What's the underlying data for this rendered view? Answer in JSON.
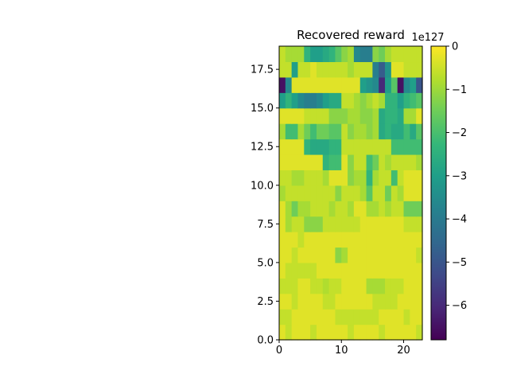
{
  "chart_data": {
    "type": "heatmap",
    "title": "Recovered reward",
    "xlabel": "",
    "ylabel": "",
    "xlim": [
      0,
      23
    ],
    "ylim": [
      0,
      19
    ],
    "x_ticks": [
      "0",
      "10",
      "20"
    ],
    "y_ticks": [
      "0.0",
      "2.5",
      "5.0",
      "7.5",
      "10.0",
      "12.5",
      "15.0",
      "17.5"
    ],
    "colormap": "viridis",
    "colorbar": {
      "range": [
        -6.8,
        0
      ],
      "ticks": [
        "0",
        "−1",
        "−2",
        "−3",
        "−4",
        "−5",
        "−6"
      ],
      "offset_label": "1e127"
    },
    "values": [
      [
        -0.3,
        -0.6,
        -0.3,
        -0.3,
        -0.3,
        -0.6,
        -0.3,
        -0.3,
        -0.3,
        -0.3,
        -0.3,
        -0.6,
        -0.3,
        -0.3,
        -0.3,
        -0.3,
        -0.6,
        -0.3,
        -0.3,
        -0.3,
        -0.3,
        -0.3,
        -0.6
      ],
      [
        -0.6,
        -0.6,
        -0.3,
        -0.3,
        -0.3,
        -0.3,
        -0.3,
        -0.3,
        -0.3,
        -0.6,
        -0.6,
        -0.6,
        -0.6,
        -0.6,
        -0.6,
        -0.6,
        -0.3,
        -0.3,
        -0.3,
        -0.3,
        -0.6,
        -0.3,
        -0.3
      ],
      [
        -0.3,
        -0.3,
        -0.6,
        -0.3,
        -0.3,
        -0.3,
        -0.3,
        -0.6,
        -0.6,
        -0.3,
        -0.3,
        -0.3,
        -0.3,
        -0.3,
        -0.3,
        -0.6,
        -0.6,
        -0.6,
        -0.6,
        -0.3,
        -0.3,
        -0.3,
        -0.3
      ],
      [
        -0.6,
        -0.6,
        -0.6,
        -0.3,
        -0.3,
        -0.6,
        -0.6,
        -0.8,
        -0.6,
        -0.6,
        -0.3,
        -0.3,
        -0.3,
        -0.3,
        -0.9,
        -0.9,
        -0.9,
        -0.6,
        -0.6,
        -0.6,
        -0.3,
        -0.3,
        -0.3
      ],
      [
        -0.3,
        -0.6,
        -0.6,
        -0.6,
        -0.6,
        -0.6,
        -0.3,
        -0.3,
        -0.3,
        -0.3,
        -0.3,
        -0.3,
        -0.3,
        -0.3,
        -0.3,
        -0.3,
        -0.3,
        -0.3,
        -0.3,
        -0.3,
        -0.3,
        -0.3,
        -0.3
      ],
      [
        -0.3,
        -0.3,
        -0.6,
        -0.3,
        -0.3,
        -0.3,
        -0.3,
        -0.3,
        -0.3,
        -1.2,
        -0.9,
        -0.3,
        -0.3,
        -0.3,
        -0.3,
        -0.3,
        -0.3,
        -0.3,
        -0.3,
        -0.3,
        -0.3,
        -0.3,
        -0.6
      ],
      [
        -0.3,
        -0.3,
        -0.3,
        -0.6,
        -0.3,
        -0.3,
        -0.3,
        -0.3,
        -0.3,
        -0.3,
        -0.3,
        -0.3,
        -0.3,
        -0.3,
        -0.3,
        -0.3,
        -0.3,
        -0.3,
        -0.3,
        -0.3,
        -0.3,
        -0.3,
        -0.3
      ],
      [
        -0.3,
        -0.9,
        -0.6,
        -0.6,
        -1.2,
        -1.2,
        -1.2,
        -0.6,
        -0.6,
        -0.6,
        -0.6,
        -0.6,
        -0.6,
        -0.3,
        -0.3,
        -0.3,
        -0.3,
        -0.3,
        -0.3,
        -0.3,
        -0.6,
        -0.6,
        -0.6
      ],
      [
        -0.3,
        -0.9,
        -1.5,
        -0.9,
        -0.9,
        -0.6,
        -0.6,
        -0.6,
        -0.9,
        -0.6,
        -0.6,
        -0.9,
        -0.3,
        -0.3,
        -0.9,
        -0.9,
        -0.6,
        -0.9,
        -0.6,
        -0.6,
        -1.5,
        -1.5,
        -1.5
      ],
      [
        -0.9,
        -0.6,
        -0.6,
        -0.6,
        -0.6,
        -0.6,
        -0.6,
        -0.6,
        -0.6,
        -1.2,
        -0.6,
        -0.6,
        -0.6,
        -0.9,
        -1.8,
        -0.6,
        -0.6,
        -1.5,
        -0.6,
        -0.9,
        -0.3,
        -0.3,
        -0.3
      ],
      [
        -0.6,
        -0.6,
        -0.9,
        -0.9,
        -0.6,
        -0.6,
        -0.6,
        -0.9,
        -0.3,
        -0.3,
        -0.3,
        -1.2,
        -0.9,
        -0.9,
        -2.4,
        -0.9,
        -0.6,
        -0.6,
        -2.1,
        -0.6,
        -0.3,
        -0.3,
        -0.3
      ],
      [
        -0.3,
        -0.3,
        -0.3,
        -0.3,
        -0.3,
        -0.3,
        -0.3,
        -2.4,
        -2.1,
        -2.1,
        -0.3,
        -1.2,
        -0.6,
        -0.6,
        -2.1,
        -1.5,
        -0.6,
        -0.9,
        -0.6,
        -0.6,
        -0.6,
        -0.6,
        -0.9
      ],
      [
        -0.3,
        -0.3,
        -0.3,
        -0.3,
        -2.4,
        -2.7,
        -2.7,
        -2.7,
        -2.4,
        -2.4,
        -0.6,
        -0.6,
        -0.6,
        -0.6,
        -0.6,
        -0.6,
        -0.6,
        -0.6,
        -2.1,
        -2.1,
        -2.1,
        -2.1,
        -2.1
      ],
      [
        -0.9,
        -2.1,
        -2.1,
        -0.9,
        -1.5,
        -2.1,
        -1.5,
        -1.5,
        -1.8,
        -1.8,
        -0.6,
        -1.2,
        -0.9,
        -0.9,
        -1.2,
        -0.9,
        -2.7,
        -2.4,
        -2.7,
        -2.7,
        -2.1,
        -2.7,
        -1.8
      ],
      [
        -0.3,
        -0.3,
        -0.3,
        -0.3,
        -0.6,
        -0.6,
        -0.6,
        -0.6,
        -1.2,
        -1.2,
        -1.2,
        -0.9,
        -0.9,
        -1.2,
        -1.2,
        -0.9,
        -2.7,
        -2.4,
        -2.4,
        -2.7,
        -0.9,
        -0.9,
        -0.3
      ],
      [
        -3.0,
        -2.4,
        -3.0,
        -3.6,
        -3.9,
        -3.9,
        -3.6,
        -3.0,
        -2.7,
        -2.7,
        -0.6,
        -0.6,
        -0.9,
        -1.2,
        -0.9,
        -0.6,
        -0.9,
        -2.4,
        -2.4,
        -3.0,
        -2.4,
        -2.1,
        -1.8
      ],
      [
        -6.5,
        -3.6,
        -0.3,
        -0.3,
        -0.3,
        -0.3,
        -0.3,
        -0.3,
        -0.3,
        -0.3,
        -0.3,
        -0.3,
        -0.3,
        -3.0,
        -3.3,
        -3.6,
        -6.0,
        -3.0,
        -1.8,
        -6.5,
        -3.6,
        -3.0,
        -5.0
      ],
      [
        -0.6,
        -0.6,
        -3.0,
        -0.6,
        -0.6,
        -0.3,
        -0.6,
        -0.6,
        -0.6,
        -0.6,
        -0.6,
        -0.9,
        -0.6,
        -0.6,
        -0.6,
        -3.9,
        -4.8,
        -3.3,
        -0.3,
        -0.3,
        -0.6,
        -0.6,
        -0.6
      ],
      [
        -0.6,
        -0.9,
        -0.9,
        -0.9,
        -2.4,
        -3.0,
        -3.0,
        -2.7,
        -2.4,
        -1.8,
        -1.2,
        -0.9,
        -3.6,
        -3.9,
        -3.9,
        -1.2,
        -1.5,
        -0.9,
        -0.6,
        -0.6,
        -0.6,
        -0.6,
        -0.6
      ]
    ]
  }
}
